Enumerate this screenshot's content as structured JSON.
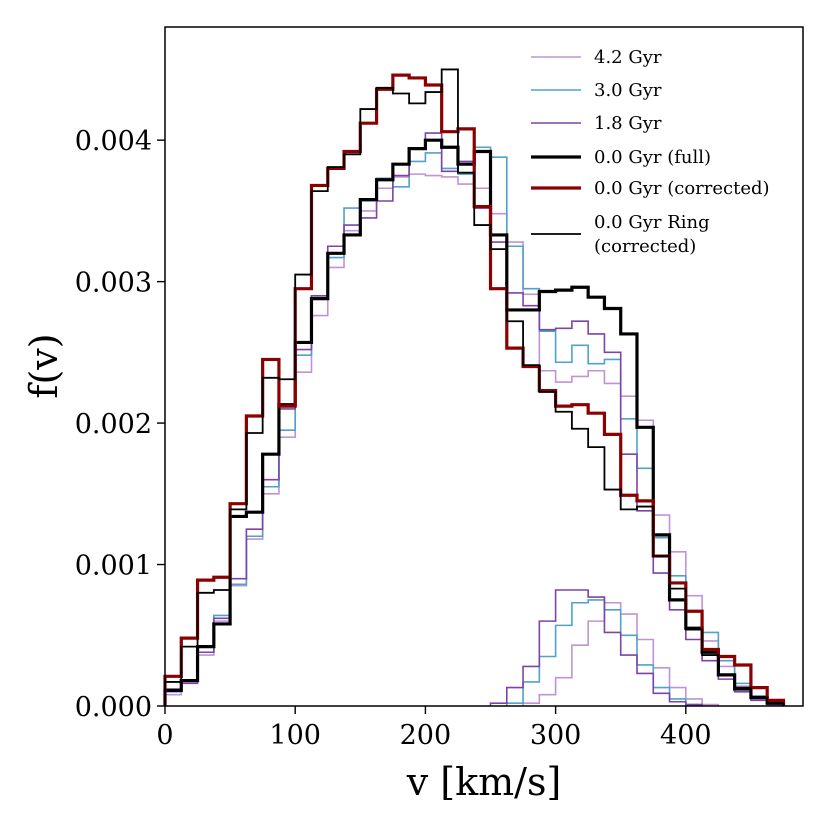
{
  "chart_data": {
    "type": "line",
    "title": "",
    "xlabel": "v [km/s]",
    "ylabel": "f(v)",
    "xlim": [
      0,
      490
    ],
    "ylim": [
      0,
      0.0048
    ],
    "xticks": [
      0,
      100,
      200,
      300,
      400
    ],
    "xtick_labels": [
      "0",
      "100",
      "200",
      "300",
      "400"
    ],
    "yticks": [
      0.0,
      0.001,
      0.002,
      0.003,
      0.004
    ],
    "ytick_labels": [
      "0.000",
      "0.001",
      "0.002",
      "0.003",
      "0.004"
    ],
    "grid": false,
    "legend_position": "top-right",
    "bin_width": 12.5,
    "series": [
      {
        "name": "4.2 Gyr",
        "color": "#c193d6",
        "style": "thin",
        "component": "main",
        "bin_starts": [
          0,
          12.5,
          25,
          37.5,
          50,
          62.5,
          75,
          87.5,
          100,
          112.5,
          125,
          137.5,
          150,
          162.5,
          175,
          187.5,
          200,
          212.5,
          225,
          237.5,
          250,
          262.5,
          275,
          287.5,
          300,
          312.5,
          325,
          337.5,
          350,
          362.5,
          375,
          387.5,
          400,
          412.5,
          425,
          437.5,
          450,
          462.5
        ],
        "values": [
          8e-05,
          0.00017,
          0.00036,
          0.0006,
          0.00085,
          0.00118,
          0.0015,
          0.0019,
          0.00236,
          0.00276,
          0.0031,
          0.00336,
          0.0035,
          0.00366,
          0.00374,
          0.00376,
          0.00375,
          0.00374,
          0.00369,
          0.00366,
          0.00348,
          0.00328,
          0.00291,
          0.00237,
          0.00229,
          0.00233,
          0.00237,
          0.00228,
          0.00219,
          0.00202,
          0.00135,
          0.00109,
          0.00078,
          0.00046,
          0.00028,
          0.00014,
          5e-05,
          2e-05
        ]
      },
      {
        "name": "3.0 Gyr",
        "color": "#4ea3c6",
        "style": "thin",
        "component": "main",
        "bin_starts": [
          0,
          12.5,
          25,
          37.5,
          50,
          62.5,
          75,
          87.5,
          100,
          112.5,
          125,
          137.5,
          150,
          162.5,
          175,
          187.5,
          200,
          212.5,
          225,
          237.5,
          250,
          262.5,
          275,
          287.5,
          300,
          312.5,
          325,
          337.5,
          350,
          362.5,
          375,
          387.5,
          400,
          412.5,
          425,
          437.5,
          450,
          462.5
        ],
        "values": [
          0.0001,
          0.00018,
          0.00038,
          0.00064,
          0.00086,
          0.0012,
          0.00155,
          0.00195,
          0.00248,
          0.0029,
          0.00317,
          0.00352,
          0.00357,
          0.00373,
          0.00367,
          0.00385,
          0.00391,
          0.0038,
          0.00376,
          0.00395,
          0.00388,
          0.00325,
          0.00295,
          0.00265,
          0.00243,
          0.00255,
          0.00242,
          0.00245,
          0.00203,
          0.00168,
          0.00119,
          0.00092,
          0.00067,
          0.00052,
          0.00032,
          0.00016,
          7e-05,
          2e-05
        ]
      },
      {
        "name": "1.8 Gyr",
        "color": "#7d44a8",
        "style": "thin",
        "component": "main",
        "bin_starts": [
          0,
          12.5,
          25,
          37.5,
          50,
          62.5,
          75,
          87.5,
          100,
          112.5,
          125,
          137.5,
          150,
          162.5,
          175,
          187.5,
          200,
          212.5,
          225,
          237.5,
          250,
          262.5,
          275,
          287.5,
          300,
          312.5,
          325,
          337.5,
          350,
          362.5,
          375,
          387.5,
          400,
          412.5,
          425,
          437.5,
          450,
          462.5
        ],
        "values": [
          0.00012,
          0.00016,
          0.00038,
          0.00062,
          0.0009,
          0.00125,
          0.0016,
          0.0021,
          0.00252,
          0.0029,
          0.00325,
          0.0034,
          0.00345,
          0.00357,
          0.00375,
          0.00394,
          0.00405,
          0.00378,
          0.00385,
          0.00352,
          0.00328,
          0.00292,
          0.00283,
          0.00266,
          0.00267,
          0.00272,
          0.00263,
          0.0025,
          0.00178,
          0.00138,
          0.00094,
          0.00068,
          0.00047,
          0.00032,
          0.00019,
          0.0001,
          4e-05,
          1e-05
        ]
      },
      {
        "name": "0.0 Gyr (full)",
        "color": "#000000",
        "style": "thick",
        "component": "main",
        "bin_starts": [
          0,
          12.5,
          25,
          37.5,
          50,
          62.5,
          75,
          87.5,
          100,
          112.5,
          125,
          137.5,
          150,
          162.5,
          175,
          187.5,
          200,
          212.5,
          225,
          237.5,
          250,
          262.5,
          275,
          287.5,
          300,
          312.5,
          325,
          337.5,
          350,
          362.5,
          375,
          387.5,
          400,
          412.5,
          425,
          437.5,
          450,
          462.5
        ],
        "values": [
          0.00011,
          0.00018,
          0.00042,
          0.00058,
          0.00134,
          0.00137,
          0.00178,
          0.00213,
          0.00257,
          0.00288,
          0.0032,
          0.00333,
          0.00358,
          0.00372,
          0.00383,
          0.00394,
          0.004,
          0.00395,
          0.00383,
          0.00392,
          0.00333,
          0.0028,
          0.0028,
          0.00293,
          0.00294,
          0.00296,
          0.00289,
          0.00281,
          0.00263,
          0.00197,
          0.00121,
          0.00075,
          0.00055,
          0.00038,
          0.00022,
          0.00012,
          6e-05,
          2e-05
        ]
      },
      {
        "name": "0.0 Gyr (corrected)",
        "color": "#8b0000",
        "style": "thick",
        "component": "main",
        "bin_starts": [
          0,
          12.5,
          25,
          37.5,
          50,
          62.5,
          75,
          87.5,
          100,
          112.5,
          125,
          137.5,
          150,
          162.5,
          175,
          187.5,
          200,
          212.5,
          225,
          237.5,
          250,
          262.5,
          275,
          287.5,
          300,
          312.5,
          325,
          337.5,
          350,
          362.5,
          375,
          387.5,
          400,
          412.5,
          425,
          437.5,
          450,
          462.5
        ],
        "values": [
          0.00021,
          0.00048,
          0.00089,
          0.00091,
          0.00143,
          0.00205,
          0.00245,
          0.00212,
          0.00295,
          0.00368,
          0.0038,
          0.00392,
          0.00412,
          0.00436,
          0.00446,
          0.00444,
          0.00439,
          0.00406,
          0.00408,
          0.00353,
          0.00295,
          0.00253,
          0.0024,
          0.00223,
          0.00212,
          0.00213,
          0.00207,
          0.00192,
          0.00149,
          0.00145,
          0.00106,
          0.00087,
          0.00067,
          0.0004,
          0.00035,
          0.00029,
          0.00013,
          4e-05
        ]
      },
      {
        "name": "0.0 Gyr Ring (corrected)",
        "color": "#000000",
        "style": "medium",
        "component": "main",
        "bin_starts": [
          0,
          12.5,
          25,
          37.5,
          50,
          62.5,
          75,
          87.5,
          100,
          112.5,
          125,
          137.5,
          150,
          162.5,
          175,
          187.5,
          200,
          212.5,
          225,
          237.5,
          250,
          262.5,
          275,
          287.5,
          300,
          312.5,
          325,
          337.5,
          350,
          362.5,
          375,
          387.5,
          400,
          412.5,
          425,
          437.5,
          450,
          462.5
        ],
        "values": [
          0.00017,
          0.00042,
          0.0008,
          0.00082,
          0.00139,
          0.00193,
          0.00232,
          0.00231,
          0.00305,
          0.00364,
          0.00381,
          0.0039,
          0.00422,
          0.00437,
          0.00433,
          0.00426,
          0.00434,
          0.0045,
          0.00377,
          0.0034,
          0.00323,
          0.00272,
          0.00241,
          0.00222,
          0.00208,
          0.00196,
          0.00183,
          0.00153,
          0.00139,
          0.00141,
          0.00106,
          0.00083,
          0.00054,
          0.00036,
          0.00022,
          0.00013,
          6e-05,
          2e-05
        ]
      },
      {
        "name": "4.2 Gyr",
        "color": "#c193d6",
        "style": "thin",
        "component": "secondary",
        "bin_starts": [
          275,
          287.5,
          300,
          312.5,
          325,
          337.5,
          350,
          362.5,
          375,
          387.5,
          400,
          412.5
        ],
        "values": [
          2e-05,
          8e-05,
          0.0002,
          0.00043,
          0.0006,
          0.00073,
          0.00065,
          0.00047,
          0.00027,
          0.00013,
          5e-05,
          1e-05
        ]
      },
      {
        "name": "3.0 Gyr",
        "color": "#4ea3c6",
        "style": "thin",
        "component": "secondary",
        "bin_starts": [
          262.5,
          275,
          287.5,
          300,
          312.5,
          325,
          337.5,
          350,
          362.5,
          375,
          387.5,
          400
        ],
        "values": [
          2e-05,
          0.00017,
          0.00035,
          0.00057,
          0.00073,
          0.00075,
          0.00068,
          0.0005,
          0.00029,
          0.00013,
          5e-05,
          1e-05
        ]
      },
      {
        "name": "1.8 Gyr",
        "color": "#7d44a8",
        "style": "thin",
        "component": "secondary",
        "bin_starts": [
          250,
          262.5,
          275,
          287.5,
          300,
          312.5,
          325,
          337.5,
          350,
          362.5,
          375,
          387.5,
          400
        ],
        "values": [
          2e-05,
          0.00013,
          0.00028,
          0.0006,
          0.00082,
          0.00082,
          0.00077,
          0.00052,
          0.00036,
          0.00023,
          9e-05,
          3e-05,
          1e-05
        ]
      }
    ],
    "legend": [
      {
        "label": "4.2 Gyr",
        "color": "#c193d6",
        "style": "thin"
      },
      {
        "label": "3.0 Gyr",
        "color": "#4ea3c6",
        "style": "thin"
      },
      {
        "label": "1.8 Gyr",
        "color": "#7d44a8",
        "style": "thin"
      },
      {
        "label": "0.0 Gyr (full)",
        "color": "#000000",
        "style": "thick"
      },
      {
        "label": "0.0 Gyr (corrected)",
        "color": "#8b0000",
        "style": "thick"
      },
      {
        "label": "0.0 Gyr Ring",
        "label2": "(corrected)",
        "color": "#000000",
        "style": "medium"
      }
    ]
  }
}
